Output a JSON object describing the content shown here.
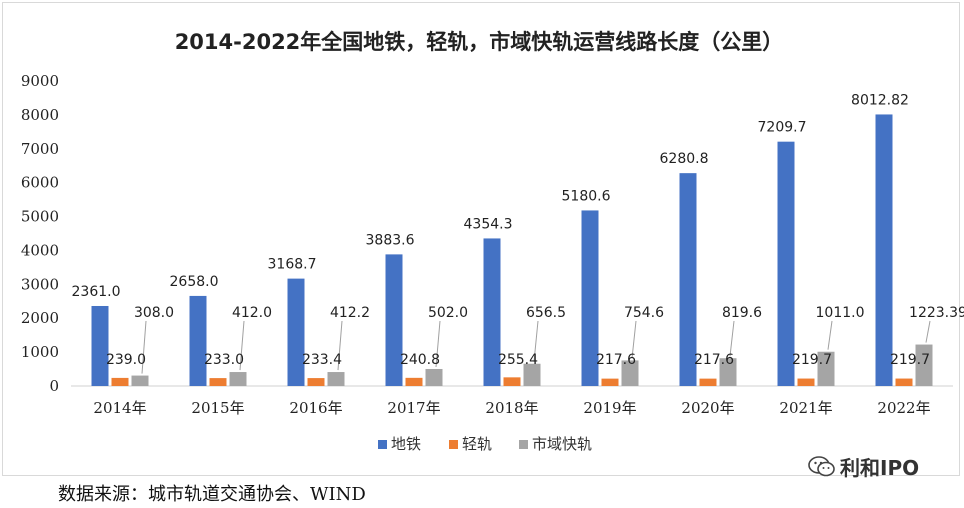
{
  "chart_data": {
    "type": "bar",
    "title": "2014-2022年全国地铁，轻轨，市域快轨运营线路长度（公里）",
    "categories": [
      "2014年",
      "2015年",
      "2016年",
      "2017年",
      "2018年",
      "2019年",
      "2020年",
      "2021年",
      "2022年"
    ],
    "series": [
      {
        "name": "地铁",
        "color": "#4472c4",
        "values": [
          2361.0,
          2658.0,
          3168.7,
          3883.6,
          4354.3,
          5180.6,
          6280.8,
          7209.7,
          8012.82
        ],
        "labels": [
          "2361.0",
          "2658.0",
          "3168.7",
          "3883.6",
          "4354.3",
          "5180.6",
          "6280.8",
          "7209.7",
          "8012.82"
        ]
      },
      {
        "name": "轻轨",
        "color": "#ed7d31",
        "values": [
          239.0,
          233.0,
          233.4,
          240.8,
          255.4,
          217.6,
          217.6,
          219.7,
          219.7
        ],
        "labels": [
          "239.0",
          "233.0",
          "233.4",
          "240.8",
          "255.4",
          "217.6",
          "217.6",
          "219.7",
          "219.7"
        ]
      },
      {
        "name": "市域快轨",
        "color": "#a5a5a5",
        "values": [
          308.0,
          412.0,
          412.2,
          502.0,
          656.5,
          754.6,
          819.6,
          1011.0,
          1223.39
        ],
        "labels": [
          "308.0",
          "412.0",
          "412.2",
          "502.0",
          "656.5",
          "754.6",
          "819.6",
          "1011.0",
          "1223.39"
        ]
      }
    ],
    "ylim": [
      0,
      9000
    ],
    "yticks": [
      0,
      1000,
      2000,
      3000,
      4000,
      5000,
      6000,
      7000,
      8000,
      9000
    ],
    "grid": false,
    "legend_position": "bottom"
  },
  "footer": {
    "source": "数据来源：城市轨道交通协会、WIND",
    "brand": "利和IPO",
    "brand_icon": "wechat-icon"
  }
}
